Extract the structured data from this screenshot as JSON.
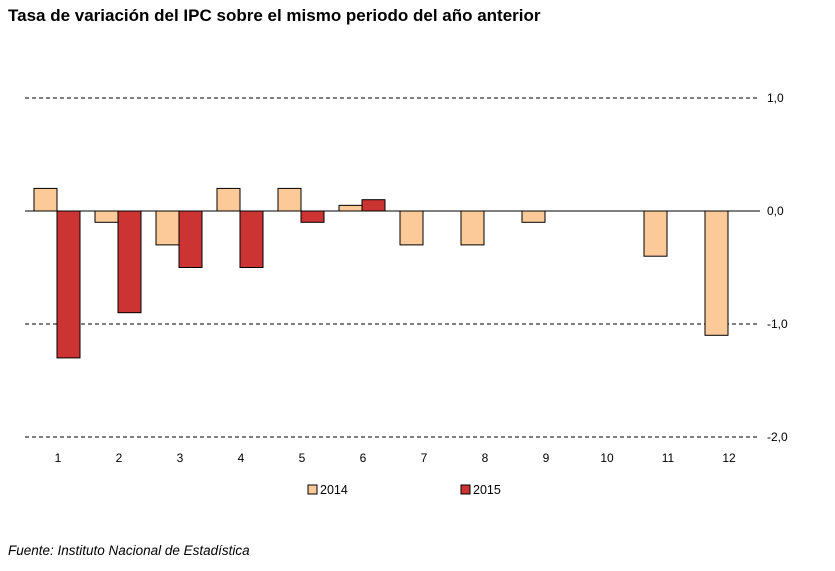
{
  "title": "Tasa de variación del IPC sobre el mismo periodo del año anterior",
  "source": "Fuente: Instituto Nacional de Estadística",
  "colors": {
    "series_2014": "#fcc998",
    "series_2015": "#cc3333",
    "outline": "#000000",
    "grid": "#000000"
  },
  "chart_data": {
    "type": "bar",
    "categories": [
      "1",
      "2",
      "3",
      "4",
      "5",
      "6",
      "7",
      "8",
      "9",
      "10",
      "11",
      "12"
    ],
    "series": [
      {
        "name": "2014",
        "values": [
          0.2,
          -0.1,
          -0.3,
          0.2,
          0.2,
          0.05,
          -0.3,
          -0.3,
          -0.1,
          0.0,
          -0.4,
          -1.1
        ]
      },
      {
        "name": "2015",
        "values": [
          -1.3,
          -0.9,
          -0.5,
          -0.5,
          -0.1,
          0.1,
          null,
          null,
          null,
          null,
          null,
          null
        ]
      }
    ],
    "yticks": [
      "1,0",
      "0,0",
      "-1,0",
      "-2,0"
    ],
    "ytick_values": [
      1.0,
      0.0,
      -1.0,
      -2.0
    ],
    "ylim": [
      -2.0,
      1.0
    ],
    "grid": "dashed horizontal at ±1,0 and -2,0; solid baseline at 0,0",
    "legend": {
      "position": "bottom",
      "entries": [
        "2014",
        "2015"
      ]
    }
  }
}
